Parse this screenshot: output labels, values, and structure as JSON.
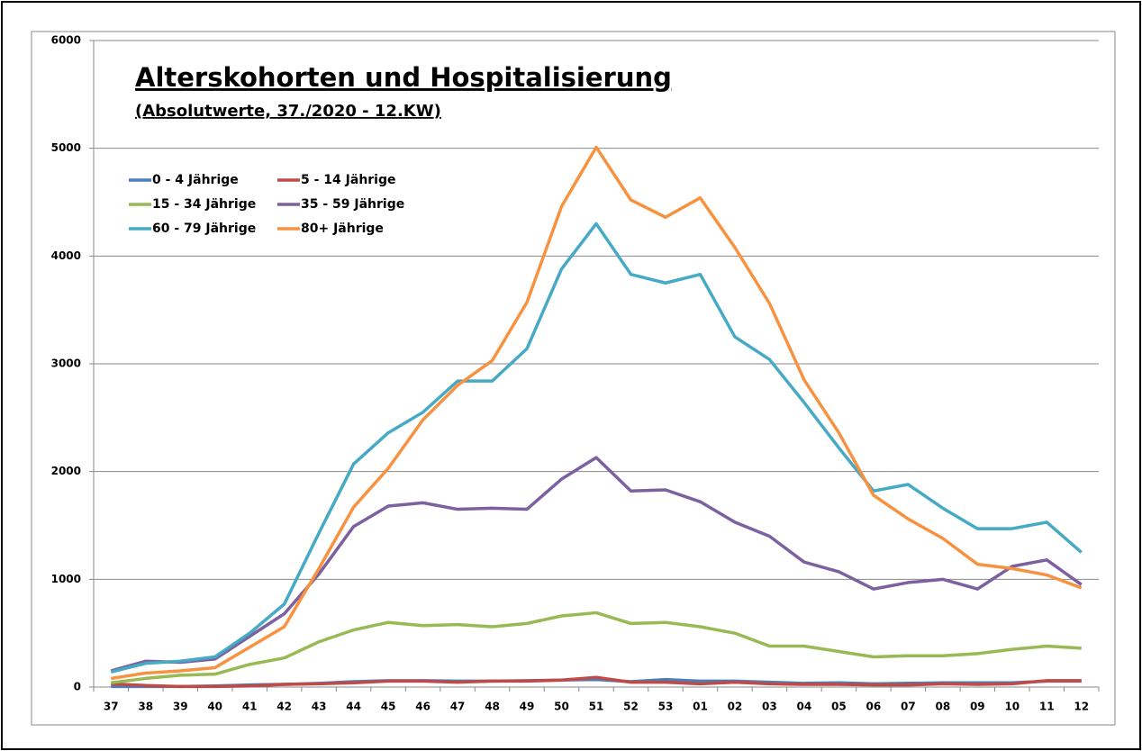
{
  "chart_data": {
    "type": "line",
    "title": "Alterskohorten und Hospitalisierung",
    "subtitle": "(Absolutwerte, 37./2020  - 12.KW)",
    "categories": [
      "37",
      "38",
      "39",
      "40",
      "41",
      "42",
      "43",
      "44",
      "45",
      "46",
      "47",
      "48",
      "49",
      "50",
      "51",
      "52",
      "53",
      "01",
      "02",
      "03",
      "04",
      "05",
      "06",
      "07",
      "08",
      "09",
      "10",
      "11",
      "12"
    ],
    "series": [
      {
        "name": "0 - 4 Jährige",
        "color": "#4a7ebb",
        "values": [
          5,
          5,
          5,
          10,
          20,
          25,
          35,
          50,
          60,
          60,
          55,
          55,
          60,
          65,
          70,
          50,
          70,
          55,
          55,
          45,
          35,
          40,
          30,
          35,
          40,
          40,
          40,
          55,
          55
        ]
      },
      {
        "name": "5 - 14 Jährige",
        "color": "#be4b48",
        "values": [
          30,
          15,
          5,
          5,
          10,
          25,
          30,
          40,
          55,
          55,
          45,
          55,
          55,
          65,
          90,
          45,
          45,
          30,
          45,
          30,
          25,
          25,
          20,
          20,
          30,
          25,
          30,
          60,
          60
        ]
      },
      {
        "name": "15 - 34 Jährige",
        "color": "#98b954",
        "values": [
          40,
          80,
          110,
          120,
          210,
          270,
          420,
          530,
          600,
          570,
          580,
          560,
          590,
          660,
          690,
          590,
          600,
          560,
          500,
          380,
          380,
          330,
          280,
          290,
          290,
          310,
          350,
          380,
          360
        ]
      },
      {
        "name": "35 - 59 Jährige",
        "color": "#7d60a0",
        "values": [
          150,
          240,
          230,
          260,
          470,
          680,
          1050,
          1490,
          1680,
          1710,
          1650,
          1660,
          1650,
          1930,
          2130,
          1820,
          1830,
          1720,
          1530,
          1400,
          1160,
          1070,
          910,
          970,
          1000,
          910,
          1120,
          1180,
          950
        ]
      },
      {
        "name": "60 - 79 Jährige",
        "color": "#46aac5",
        "values": [
          140,
          220,
          240,
          280,
          500,
          770,
          1430,
          2070,
          2360,
          2550,
          2840,
          2840,
          3140,
          3880,
          4300,
          3830,
          3750,
          3830,
          3250,
          3040,
          2640,
          2220,
          1820,
          1880,
          1660,
          1470,
          1470,
          1530,
          1250
        ]
      },
      {
        "name": "80+ Jährige",
        "color": "#f69240",
        "values": [
          80,
          130,
          150,
          180,
          370,
          560,
          1100,
          1670,
          2030,
          2480,
          2800,
          3030,
          3570,
          4460,
          5010,
          4520,
          4360,
          4540,
          4080,
          3560,
          2850,
          2360,
          1780,
          1560,
          1380,
          1140,
          1100,
          1040,
          920
        ]
      }
    ],
    "ylim": [
      0,
      6000
    ],
    "yticks": [
      0,
      1000,
      2000,
      3000,
      4000,
      5000,
      6000
    ],
    "grid": true
  }
}
